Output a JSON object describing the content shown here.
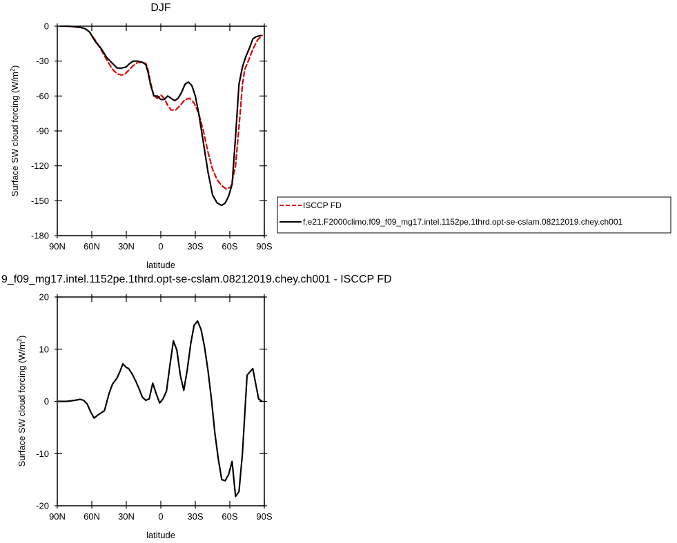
{
  "chart_data": [
    {
      "type": "line",
      "title": "DJF",
      "xlabel": "latitude",
      "ylabel": "Surface SW cloud forcing (W/m",
      "ylabel_sup": "2",
      "ylabel_end": ")",
      "xlim": [
        -90,
        90
      ],
      "ylim": [
        -180,
        0
      ],
      "xticks": [
        -90,
        -60,
        -30,
        0,
        30,
        60,
        90
      ],
      "xtick_labels": [
        "90N",
        "60N",
        "30N",
        "0",
        "30S",
        "60S",
        "90S"
      ],
      "yticks": [
        0,
        -30,
        -60,
        -90,
        -120,
        -150,
        -180
      ],
      "ytick_labels": [
        "0",
        "-30",
        "-60",
        "-90",
        "-120",
        "-150",
        "-180"
      ],
      "grid": false,
      "legend_position": "outside-right",
      "series": [
        {
          "name": "ISCCP FD",
          "color": "#e00000",
          "dash": "dashed",
          "x": [
            -82,
            -75,
            -70,
            -66,
            -62,
            -57,
            -52,
            -47,
            -42,
            -38,
            -34,
            -31,
            -28,
            -24,
            -20,
            -16,
            -13,
            -11,
            -9,
            -6,
            -3,
            0,
            3,
            6,
            9,
            13,
            17,
            21,
            25,
            29,
            33,
            37,
            41,
            45,
            49,
            53,
            57,
            61,
            65,
            69,
            71,
            73,
            76,
            80,
            84,
            88
          ],
          "y": [
            0,
            -0.5,
            -1,
            -2,
            -5,
            -12,
            -20,
            -29,
            -37,
            -41,
            -42,
            -41,
            -38,
            -34,
            -31,
            -31,
            -32,
            -38,
            -48,
            -60,
            -62,
            -59,
            -62,
            -68,
            -72,
            -72,
            -68,
            -63,
            -62,
            -66,
            -75,
            -90,
            -108,
            -123,
            -132,
            -137,
            -140,
            -138,
            -120,
            -75,
            -50,
            -37,
            -30,
            -20,
            -12,
            -8
          ]
        },
        {
          "name": "f.e21.F2000climo.f09_f09_mg17.intel.1152pe.1thrd.opt-se-cslam.08212019.chey.ch001",
          "color": "#000000",
          "dash": "solid",
          "x": [
            -87,
            -80,
            -75,
            -70,
            -66,
            -62,
            -57,
            -52,
            -47,
            -42,
            -38,
            -34,
            -30,
            -27,
            -24,
            -20,
            -16,
            -13,
            -11,
            -9,
            -6,
            -3,
            0,
            3,
            6,
            9,
            12,
            15,
            18,
            21,
            24,
            27,
            30,
            33,
            37,
            41,
            45,
            49,
            53,
            56,
            59,
            62,
            65,
            68,
            71,
            74,
            77,
            80,
            83,
            87
          ],
          "y": [
            0,
            0,
            -0.5,
            -1,
            -2,
            -5,
            -13,
            -19,
            -27,
            -32,
            -36,
            -36,
            -35,
            -32,
            -30,
            -30,
            -31,
            -33,
            -40,
            -50,
            -60,
            -60,
            -63,
            -63,
            -60,
            -62,
            -64,
            -62,
            -57,
            -50,
            -48,
            -51,
            -60,
            -75,
            -100,
            -125,
            -145,
            -152,
            -154,
            -152,
            -146,
            -136,
            -95,
            -50,
            -35,
            -26,
            -19,
            -11,
            -9,
            -8
          ]
        }
      ]
    },
    {
      "type": "line",
      "title": "9_f09_mg17.intel.1152pe.1thrd.opt-se-cslam.08212019.chey.ch001 - ISCCP FD",
      "xlabel": "latitude",
      "ylabel": "Surface SW cloud forcing (W/m",
      "ylabel_sup": "2",
      "ylabel_end": ")",
      "xlim": [
        -90,
        90
      ],
      "ylim": [
        -20,
        20
      ],
      "xticks": [
        -90,
        -60,
        -30,
        0,
        30,
        60,
        90
      ],
      "xtick_labels": [
        "90N",
        "60N",
        "30N",
        "0",
        "30S",
        "60S",
        "90S"
      ],
      "yticks": [
        20,
        10,
        0,
        -10,
        -20
      ],
      "ytick_labels": [
        "20",
        "10",
        "0",
        "-10",
        "-20"
      ],
      "grid": false,
      "series": [
        {
          "color": "#000000",
          "dash": "solid",
          "x": [
            -90,
            -82,
            -75,
            -70,
            -67,
            -64,
            -61,
            -58,
            -54,
            -49,
            -45,
            -42,
            -38,
            -35,
            -33,
            -30,
            -28,
            -25,
            -22,
            -19,
            -16,
            -13,
            -10,
            -7,
            -4,
            -1,
            2,
            5,
            8,
            11,
            14,
            17,
            20,
            23,
            26,
            29,
            32,
            35,
            38,
            41,
            44,
            47,
            50,
            53,
            56,
            59,
            62,
            65,
            68,
            71,
            75,
            80,
            85,
            88
          ],
          "y": [
            0,
            0,
            0.2,
            0.4,
            0.2,
            -0.5,
            -2,
            -3.2,
            -2.5,
            -1.8,
            1.5,
            3.3,
            4.5,
            6,
            7.2,
            6.5,
            6.3,
            5.3,
            4,
            2.5,
            0.8,
            0.2,
            0.5,
            3.5,
            1.5,
            -0.3,
            0.5,
            2,
            7,
            11.6,
            9.8,
            5,
            2.1,
            6,
            11,
            14.6,
            15.4,
            13.8,
            10.5,
            6,
            0.5,
            -6,
            -11,
            -15,
            -15.2,
            -14,
            -11.5,
            -18.2,
            -17.3,
            -10,
            5,
            6.3,
            0.5,
            0
          ]
        }
      ]
    }
  ]
}
